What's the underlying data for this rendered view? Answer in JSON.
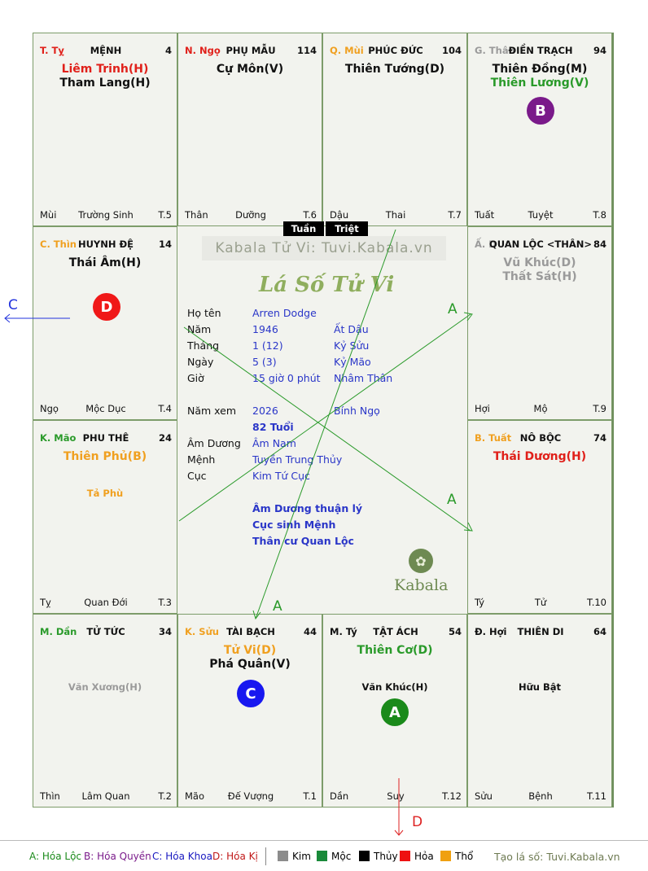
{
  "cells": [
    {
      "id": "ty",
      "stem": "T. Tỵ",
      "stem_color": "#e0201a",
      "palace": "MỆNH",
      "num": "4",
      "stars": [
        {
          "t": "Liêm Trinh(H)",
          "c": "#e0201a"
        },
        {
          "t": "Tham Lang(H)",
          "c": "#111111"
        }
      ],
      "minor": [],
      "foot": {
        "l": "Mùi",
        "c": "Trường Sinh",
        "r": "T.5"
      }
    },
    {
      "id": "ngo",
      "stem": "N. Ngọ",
      "stem_color": "#e0201a",
      "palace": "PHỤ MẪU",
      "num": "114",
      "stars": [
        {
          "t": "Cự Môn(V)",
          "c": "#111111"
        }
      ],
      "minor": [],
      "foot": {
        "l": "Thân",
        "c": "Dưỡng",
        "r": "T.6"
      }
    },
    {
      "id": "mui",
      "stem": "Q. Mùi",
      "stem_color": "#f0a020",
      "palace": "PHÚC ĐỨC",
      "num": "104",
      "stars": [
        {
          "t": "Thiên Tướng(D)",
          "c": "#111111"
        }
      ],
      "minor": [],
      "foot": {
        "l": "Dậu",
        "c": "Thai",
        "r": "T.7"
      }
    },
    {
      "id": "than",
      "stem": "G. Thân",
      "stem_color": "#9a9a9a",
      "palace": "ĐIỀN TRẠCH",
      "num": "94",
      "stars": [
        {
          "t": "Thiên Đồng(M)",
          "c": "#111111"
        },
        {
          "t": "Thiên Lương(V)",
          "c": "#2a9a2a"
        }
      ],
      "minor": [],
      "foot": {
        "l": "Tuất",
        "c": "Tuyệt",
        "r": "T.8"
      }
    },
    {
      "id": "thin",
      "stem": "C. Thìn",
      "stem_color": "#f0a020",
      "palace": "HUYNH ĐỆ",
      "num": "14",
      "stars": [
        {
          "t": "Thái Âm(H)",
          "c": "#111111"
        }
      ],
      "minor": [],
      "foot": {
        "l": "Ngọ",
        "c": "Mộc Dục",
        "r": "T.4"
      }
    },
    {
      "id": "dau",
      "stem": "Ấ. D",
      "stem_color": "#9a9a9a",
      "palace": "QUAN LỘC <THÂN>",
      "num": "84",
      "stars": [
        {
          "t": "Vũ Khúc(D)",
          "c": "#9a9a9a"
        },
        {
          "t": "Thất Sát(H)",
          "c": "#9a9a9a"
        }
      ],
      "minor": [],
      "foot": {
        "l": "Hợi",
        "c": "Mộ",
        "r": "T.9"
      }
    },
    {
      "id": "mao",
      "stem": "K. Mão",
      "stem_color": "#2a9a2a",
      "palace": "PHU THÊ",
      "num": "24",
      "stars": [
        {
          "t": "Thiên Phủ(B)",
          "c": "#f0a020"
        }
      ],
      "minor": [
        {
          "t": "Tả Phù",
          "c": "#f0a020"
        }
      ],
      "foot": {
        "l": "Tỵ",
        "c": "Quan Đới",
        "r": "T.3"
      }
    },
    {
      "id": "tuat",
      "stem": "B. Tuất",
      "stem_color": "#f0a020",
      "palace": "NÔ BỘC",
      "num": "74",
      "stars": [
        {
          "t": "Thái Dương(H)",
          "c": "#e0201a"
        }
      ],
      "minor": [],
      "foot": {
        "l": "Tý",
        "c": "Tử",
        "r": "T.10"
      }
    },
    {
      "id": "dan",
      "stem": "M. Dần",
      "stem_color": "#2a9a2a",
      "palace": "TỬ TỨC",
      "num": "34",
      "stars": [],
      "minor": [
        {
          "t": "Văn Xương(H)",
          "c": "#9a9a9a"
        }
      ],
      "foot": {
        "l": "Thìn",
        "c": "Lâm Quan",
        "r": "T.2"
      }
    },
    {
      "id": "suu",
      "stem": "K. Sửu",
      "stem_color": "#f0a020",
      "palace": "TÀI BẠCH",
      "num": "44",
      "stars": [
        {
          "t": "Tử Vi(D)",
          "c": "#f0a020"
        },
        {
          "t": "Phá Quân(V)",
          "c": "#111111"
        }
      ],
      "minor": [],
      "foot": {
        "l": "Mão",
        "c": "Đế Vượng",
        "r": "T.1"
      }
    },
    {
      "id": "tyx",
      "stem": "M. Tý",
      "stem_color": "#111111",
      "palace": "TẬT ÁCH",
      "num": "54",
      "stars": [
        {
          "t": "Thiên Cơ(D)",
          "c": "#2a9a2a"
        }
      ],
      "minor": [
        {
          "t": "Văn Khúc(H)",
          "c": "#111111"
        }
      ],
      "foot": {
        "l": "Dần",
        "c": "Suy",
        "r": "T.12"
      }
    },
    {
      "id": "hoi",
      "stem": "Đ. Hợi",
      "stem_color": "#111111",
      "palace": "THIÊN DI",
      "num": "64",
      "stars": [],
      "minor": [
        {
          "t": "Hữu Bật",
          "c": "#111111"
        }
      ],
      "foot": {
        "l": "Sửu",
        "c": "Bệnh",
        "r": "T.11"
      }
    }
  ],
  "markers": {
    "b": "B",
    "d": "D",
    "c": "C",
    "a": "A"
  },
  "markers_colors": {
    "b": "#7a1a8a",
    "d": "#f01818",
    "c": "#1818f0",
    "a": "#1a8a1a"
  },
  "arrows": {
    "c": "C",
    "d": "D",
    "a1": "A",
    "a2": "A",
    "a3": "A"
  },
  "center": {
    "tuan": "Tuần",
    "triet": "Triệt",
    "site": "Kabala Tử Vi: Tuvi.Kabala.vn",
    "title": "Lá Số Tử Vi",
    "rows": [
      {
        "label": "Họ tên",
        "v1": "Arren Dodge",
        "v2": ""
      },
      {
        "label": "Năm",
        "v1": "1946",
        "v2": "Ất Dậu"
      },
      {
        "label": "Tháng",
        "v1": "1  (12)",
        "v2": "Kỷ Sửu"
      },
      {
        "label": "Ngày",
        "v1": "5  (3)",
        "v2": "Kỷ Mão"
      },
      {
        "label": "Giờ",
        "v1": "15 giờ 0 phút",
        "v2": "Nhâm Thân"
      }
    ],
    "namxem": {
      "label": "Năm xem",
      "v1": "2026",
      "v2": "Bính Ngọ"
    },
    "tuoi": "82 Tuổi",
    "rows2": [
      {
        "label": "Âm Dương",
        "v1": "Âm Nam"
      },
      {
        "label": "Mệnh",
        "v1": "Tuyền Trung Thủy"
      },
      {
        "label": "Cục",
        "v1": "Kim Tứ Cục"
      }
    ],
    "notes": [
      "Âm Dương thuận lý",
      "Cục sinh Mệnh",
      "Thân cư Quan Lộc"
    ],
    "logo": "Kabala"
  },
  "legend": {
    "a": "A: Hóa Lộc",
    "b": "B: Hóa Quyền",
    "c": "C: Hóa Khoa",
    "d": "D: Hóa Kị",
    "elements": [
      {
        "name": "Kim",
        "color": "#8c8c8c"
      },
      {
        "name": "Mộc",
        "color": "#1a8a3a"
      },
      {
        "name": "Thủy",
        "color": "#000000"
      },
      {
        "name": "Hỏa",
        "color": "#ee1111"
      },
      {
        "name": "Thổ",
        "color": "#f0a010"
      }
    ],
    "footer": "Tạo lá số: Tuvi.Kabala.vn"
  }
}
